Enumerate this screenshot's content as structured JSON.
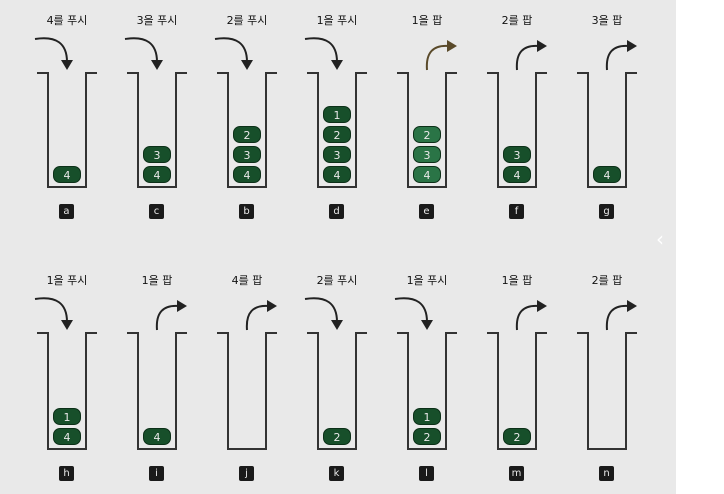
{
  "diagram": {
    "panels": [
      {
        "id": "a",
        "label": "a",
        "operation": "4를 푸시",
        "action": "push",
        "stack": [
          "4"
        ]
      },
      {
        "id": "c",
        "label": "c",
        "operation": "3을 푸시",
        "action": "push",
        "stack": [
          "3",
          "4"
        ]
      },
      {
        "id": "b",
        "label": "b",
        "operation": "2를 푸시",
        "action": "push",
        "stack": [
          "2",
          "3",
          "4"
        ]
      },
      {
        "id": "d",
        "label": "d",
        "operation": "1을 푸시",
        "action": "push",
        "stack": [
          "1",
          "2",
          "3",
          "4"
        ]
      },
      {
        "id": "e",
        "label": "e",
        "operation": "1을 팝",
        "action": "pop",
        "stack": [
          "2",
          "3",
          "4"
        ]
      },
      {
        "id": "f",
        "label": "f",
        "operation": "2를 팝",
        "action": "pop",
        "stack": [
          "3",
          "4"
        ]
      },
      {
        "id": "g",
        "label": "g",
        "operation": "3을 팝",
        "action": "pop",
        "stack": [
          "4"
        ]
      },
      {
        "id": "h",
        "label": "h",
        "operation": "1을 푸시",
        "action": "push",
        "stack": [
          "1",
          "4"
        ]
      },
      {
        "id": "i",
        "label": "i",
        "operation": "1을 팝",
        "action": "pop",
        "stack": [
          "4"
        ]
      },
      {
        "id": "j",
        "label": "j",
        "operation": "4를 팝",
        "action": "pop",
        "stack": []
      },
      {
        "id": "k",
        "label": "k",
        "operation": "2를 푸시",
        "action": "push",
        "stack": [
          "2"
        ]
      },
      {
        "id": "l",
        "label": "l",
        "operation": "1을 푸시",
        "action": "push",
        "stack": [
          "1",
          "2"
        ]
      },
      {
        "id": "m",
        "label": "m",
        "operation": "1을 팝",
        "action": "pop",
        "stack": [
          "2"
        ]
      },
      {
        "id": "n",
        "label": "n",
        "operation": "2를 팝",
        "action": "pop",
        "stack": []
      }
    ]
  },
  "colors": {
    "background": "#e9e9e9",
    "item": "#174f2a",
    "item_after_pop": "#2a7446",
    "outline": "#333333"
  },
  "icons": {
    "push_arrow": "curved-arrow-down-icon",
    "pop_arrow": "curved-arrow-right-icon",
    "edge_control": "chevron-left-icon"
  }
}
